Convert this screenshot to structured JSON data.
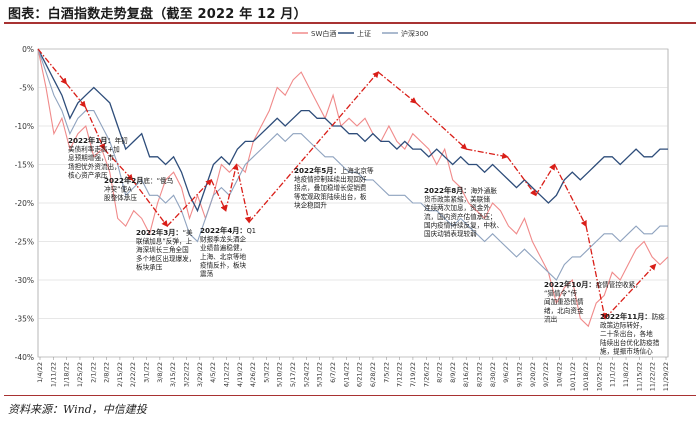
{
  "figure": {
    "title": "图表：白酒指数走势复盘（截至 2022 年 12 月）",
    "source": "资料来源：Wind，中信建投"
  },
  "colors": {
    "sw_baijiu": "#f08a8a",
    "shangzheng": "#2e4d7a",
    "hushen300": "#8fa3bf",
    "trend": "#d91e18",
    "grid": "#cfcfcf",
    "axis": "#888888"
  },
  "chart_data": {
    "type": "line",
    "legend_position": "top-center",
    "ylim": [
      -40,
      0
    ],
    "yticks": [
      0,
      -5,
      -10,
      -15,
      -20,
      -25,
      -30,
      -35,
      -40
    ],
    "ytick_labels": [
      "0%",
      "-5%",
      "-10%",
      "-15%",
      "-20%",
      "-25%",
      "-30%",
      "-35%",
      "-40%"
    ],
    "y_unit": "%",
    "grid": true,
    "x_tick_labels": [
      "1/4/22",
      "1/11/22",
      "1/18/22",
      "1/25/22",
      "2/1/22",
      "2/8/22",
      "2/15/22",
      "2/22/22",
      "3/1/22",
      "3/8/22",
      "3/15/22",
      "3/22/22",
      "3/29/22",
      "4/5/22",
      "4/12/22",
      "4/19/22",
      "4/26/22",
      "5/3/22",
      "5/10/22",
      "5/17/22",
      "5/24/22",
      "5/31/22",
      "6/7/22",
      "6/14/22",
      "6/21/22",
      "6/28/22",
      "7/5/22",
      "7/12/22",
      "7/19/22",
      "7/26/22",
      "8/2/22",
      "8/9/22",
      "8/16/22",
      "8/23/22",
      "8/30/22",
      "9/6/22",
      "9/13/22",
      "9/20/22",
      "9/27/22",
      "10/4/22",
      "10/11/22",
      "10/18/22",
      "10/25/22",
      "11/1/22",
      "11/8/22",
      "11/15/22",
      "11/22/22",
      "11/29/22"
    ],
    "series": [
      {
        "name": "SW白酒",
        "color": "#f08a8a",
        "values": [
          0,
          -5,
          -11,
          -9,
          -13,
          -11,
          -10,
          -14,
          -13,
          -16,
          -22,
          -23,
          -21,
          -22,
          -24,
          -20,
          -17,
          -16,
          -18,
          -22,
          -19,
          -22,
          -19,
          -15,
          -16,
          -15,
          -16,
          -12,
          -10,
          -8,
          -5,
          -6,
          -4,
          -3,
          -5,
          -7,
          -9,
          -6,
          -10,
          -9,
          -10,
          -9,
          -11,
          -12,
          -10,
          -12,
          -13,
          -11,
          -12,
          -13,
          -15,
          -13,
          -17,
          -18,
          -20,
          -21,
          -22,
          -20,
          -21,
          -23,
          -24,
          -22,
          -25,
          -27,
          -29,
          -33,
          -31,
          -30,
          -35,
          -36,
          -33,
          -32,
          -29,
          -30,
          -28,
          -26,
          -25,
          -27,
          -28,
          -27
        ]
      },
      {
        "name": "上证",
        "color": "#2e4d7a",
        "values": [
          0,
          -2,
          -4,
          -6,
          -9,
          -7,
          -6,
          -5,
          -6,
          -7,
          -10,
          -13,
          -12,
          -11,
          -14,
          -14,
          -15,
          -14,
          -16,
          -19,
          -21,
          -18,
          -15,
          -14,
          -15,
          -13,
          -12,
          -12,
          -11,
          -10,
          -9,
          -10,
          -9,
          -8,
          -8,
          -9,
          -9,
          -10,
          -10,
          -11,
          -11,
          -12,
          -11,
          -12,
          -12,
          -13,
          -12,
          -13,
          -13,
          -14,
          -13,
          -14,
          -15,
          -14,
          -15,
          -15,
          -16,
          -15,
          -16,
          -17,
          -18,
          -17,
          -18,
          -19,
          -20,
          -19,
          -17,
          -16,
          -17,
          -16,
          -15,
          -14,
          -14,
          -15,
          -14,
          -13,
          -14,
          -14,
          -13,
          -13
        ]
      },
      {
        "name": "沪深300",
        "color": "#8fa3bf",
        "values": [
          0,
          -3,
          -6,
          -8,
          -11,
          -9,
          -8,
          -8,
          -10,
          -12,
          -15,
          -19,
          -18,
          -17,
          -19,
          -19,
          -20,
          -19,
          -21,
          -24,
          -25,
          -22,
          -19,
          -18,
          -19,
          -17,
          -15,
          -14,
          -13,
          -12,
          -11,
          -12,
          -11,
          -11,
          -12,
          -13,
          -14,
          -14,
          -15,
          -16,
          -16,
          -17,
          -17,
          -18,
          -19,
          -19,
          -19,
          -20,
          -20,
          -21,
          -21,
          -22,
          -23,
          -22,
          -23,
          -24,
          -25,
          -24,
          -25,
          -26,
          -27,
          -26,
          -27,
          -28,
          -29,
          -30,
          -28,
          -27,
          -27,
          -26,
          -25,
          -24,
          -24,
          -25,
          -24,
          -23,
          -24,
          -24,
          -23,
          -23
        ]
      }
    ],
    "trend_markers": [
      {
        "x_frac": 0.0,
        "y": 0
      },
      {
        "x_frac": 0.045,
        "y": -4.5
      },
      {
        "x_frac": 0.075,
        "y": -7.5
      },
      {
        "x_frac": 0.105,
        "y": -13
      },
      {
        "x_frac": 0.15,
        "y": -17
      },
      {
        "x_frac": 0.205,
        "y": -23
      },
      {
        "x_frac": 0.275,
        "y": -17
      },
      {
        "x_frac": 0.298,
        "y": -21
      },
      {
        "x_frac": 0.315,
        "y": -15
      },
      {
        "x_frac": 0.335,
        "y": -22.5
      },
      {
        "x_frac": 0.54,
        "y": -3
      },
      {
        "x_frac": 0.6,
        "y": -7
      },
      {
        "x_frac": 0.68,
        "y": -13
      },
      {
        "x_frac": 0.745,
        "y": -14
      },
      {
        "x_frac": 0.79,
        "y": -19
      },
      {
        "x_frac": 0.82,
        "y": -15
      },
      {
        "x_frac": 0.87,
        "y": -23
      },
      {
        "x_frac": 0.9,
        "y": -35
      },
      {
        "x_frac": 0.98,
        "y": -28
      }
    ],
    "annotations": [
      {
        "date": "2022年1月：",
        "text": [
          "年初",
          "美债利率走高+加",
          "息预期增强，市",
          "场担忧外资流出，",
          "核心资产承压"
        ]
      },
      {
        "date": "2022年2月",
        "text": [
          "底：“俄乌",
          "冲突”使A",
          "股整体承压"
        ]
      },
      {
        "date": "2022年3月：",
        "text": [
          "“美",
          "联储加息”反弹，上",
          "海深圳长三角全国",
          "多个地区出现爆发，",
          "板块承压"
        ]
      },
      {
        "date": "2022年4月：",
        "text": [
          "Q1",
          "财报季龙头酒企",
          "业绩普遍稳健，",
          "上海、北京等地",
          "疫情反扑，板块",
          "震荡"
        ]
      },
      {
        "date": "2022年5月：",
        "text": [
          "上海北京等",
          "地疫情控制延续出现回好",
          "拐点，叠加稳增长促销费",
          "等宏观政策陆续出台，板",
          "块企稳回升"
        ]
      },
      {
        "date": "2022年8月：",
        "text": [
          "海外通胀",
          "货币政策紧缩，美联储",
          "连续两次加息，资金外",
          "流，国内资产估值承压；",
          "国内疫情持续反复，中秋、",
          "国庆动销表现较弱"
        ]
      },
      {
        "date": "2022年10月：",
        "text": [
          "疫情管控收紧，",
          "“猎情令”传",
          "闻加重恐慌情",
          "绪，北向资金",
          "流出"
        ]
      },
      {
        "date": "2022年11月：",
        "text": [
          "防疫",
          "政策边际转好，",
          "二十条出台，各地",
          "陆续出台优化防疫措",
          "施，提振市场信心"
        ]
      }
    ]
  }
}
